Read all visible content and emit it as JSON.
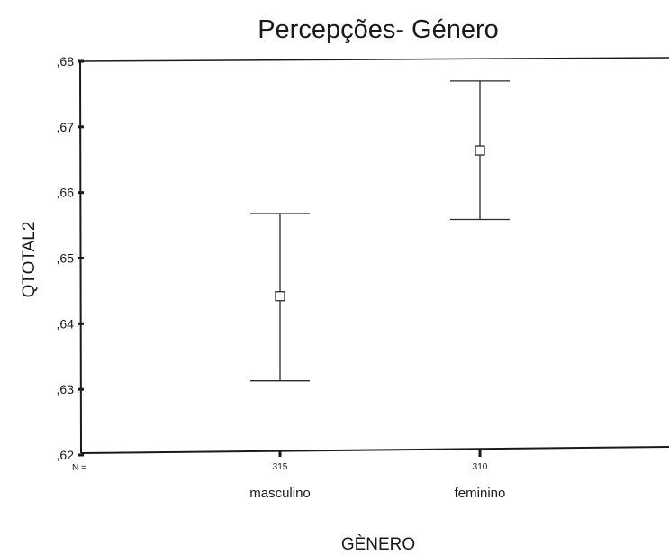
{
  "chart_data": {
    "type": "errorbar",
    "title": "Percepções- Género",
    "xlabel": "GÈNERO",
    "ylabel": "QTOTAL2",
    "ylim": [
      0.62,
      0.68
    ],
    "yticks": [
      ",62",
      ",63",
      ",64",
      ",65",
      ",66",
      ",67",
      ",68"
    ],
    "n_label": "N =",
    "categories": [
      "masculino",
      "feminino"
    ],
    "n": [
      "315",
      "310"
    ],
    "means": [
      0.6442,
      0.6664
    ],
    "lower": [
      0.6313,
      0.6559
    ],
    "upper": [
      0.6568,
      0.677
    ]
  }
}
